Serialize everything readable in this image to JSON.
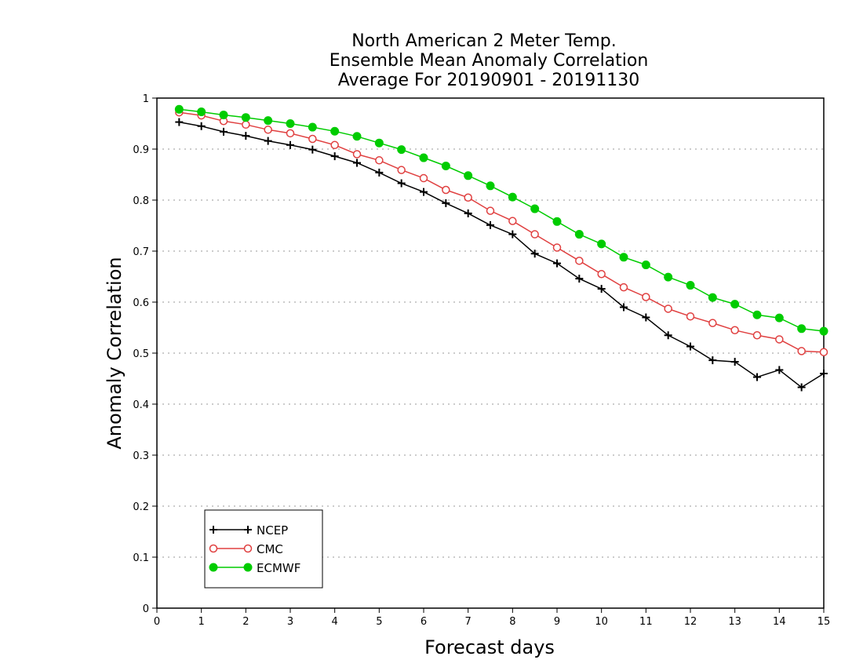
{
  "chart_data": {
    "type": "line",
    "title_lines": [
      "North American 2 Meter Temp.",
      "Ensemble Mean Anomaly Correlation",
      "Average For 20190901 - 20191130"
    ],
    "xlabel": "Forecast days",
    "ylabel": "Anomaly Correlation",
    "xlim": [
      0,
      15
    ],
    "ylim": [
      0,
      1
    ],
    "xticks": [
      0,
      1,
      2,
      3,
      4,
      5,
      6,
      7,
      8,
      9,
      10,
      11,
      12,
      13,
      14,
      15
    ],
    "xtick_labels": [
      "0",
      "1",
      "2",
      "3",
      "4",
      "5",
      "6",
      "7",
      "8",
      "9",
      "10",
      "11",
      "12",
      "13",
      "14",
      "15"
    ],
    "yticks": [
      0,
      0.1,
      0.2,
      0.3,
      0.4,
      0.5,
      0.6,
      0.7,
      0.8,
      0.9,
      1
    ],
    "ytick_labels": [
      "0",
      "0.1",
      "0.2",
      "0.3",
      "0.4",
      "0.5",
      "0.6",
      "0.7",
      "0.8",
      "0.9",
      "1"
    ],
    "grid": "horizontal dotted",
    "legend_position": "bottom-left",
    "x": [
      0.5,
      1,
      1.5,
      2,
      2.5,
      3,
      3.5,
      4,
      4.5,
      5,
      5.5,
      6,
      6.5,
      7,
      7.5,
      8,
      8.5,
      9,
      9.5,
      10,
      10.5,
      11,
      11.5,
      12,
      12.5,
      13,
      13.5,
      14,
      14.5,
      15
    ],
    "series": [
      {
        "name": "NCEP",
        "color": "#000000",
        "marker": "plus",
        "values": [
          0.953,
          0.945,
          0.934,
          0.926,
          0.916,
          0.908,
          0.899,
          0.886,
          0.873,
          0.854,
          0.833,
          0.816,
          0.794,
          0.774,
          0.751,
          0.733,
          0.695,
          0.676,
          0.646,
          0.626,
          0.59,
          0.57,
          0.535,
          0.513,
          0.486,
          0.483,
          0.453,
          0.467,
          0.433,
          0.46
        ]
      },
      {
        "name": "CMC",
        "color": "#e04040",
        "marker": "open-circle",
        "values": [
          0.972,
          0.966,
          0.955,
          0.948,
          0.938,
          0.931,
          0.92,
          0.908,
          0.89,
          0.878,
          0.859,
          0.843,
          0.82,
          0.805,
          0.779,
          0.759,
          0.733,
          0.707,
          0.681,
          0.655,
          0.629,
          0.61,
          0.587,
          0.572,
          0.559,
          0.545,
          0.535,
          0.527,
          0.504,
          0.502
        ]
      },
      {
        "name": "ECMWF",
        "color": "#00cc00",
        "marker": "filled-circle",
        "values": [
          0.978,
          0.973,
          0.967,
          0.962,
          0.956,
          0.95,
          0.943,
          0.935,
          0.925,
          0.912,
          0.899,
          0.883,
          0.867,
          0.848,
          0.828,
          0.806,
          0.783,
          0.758,
          0.733,
          0.714,
          0.688,
          0.673,
          0.649,
          0.633,
          0.609,
          0.596,
          0.575,
          0.569,
          0.548,
          0.543
        ]
      }
    ]
  }
}
